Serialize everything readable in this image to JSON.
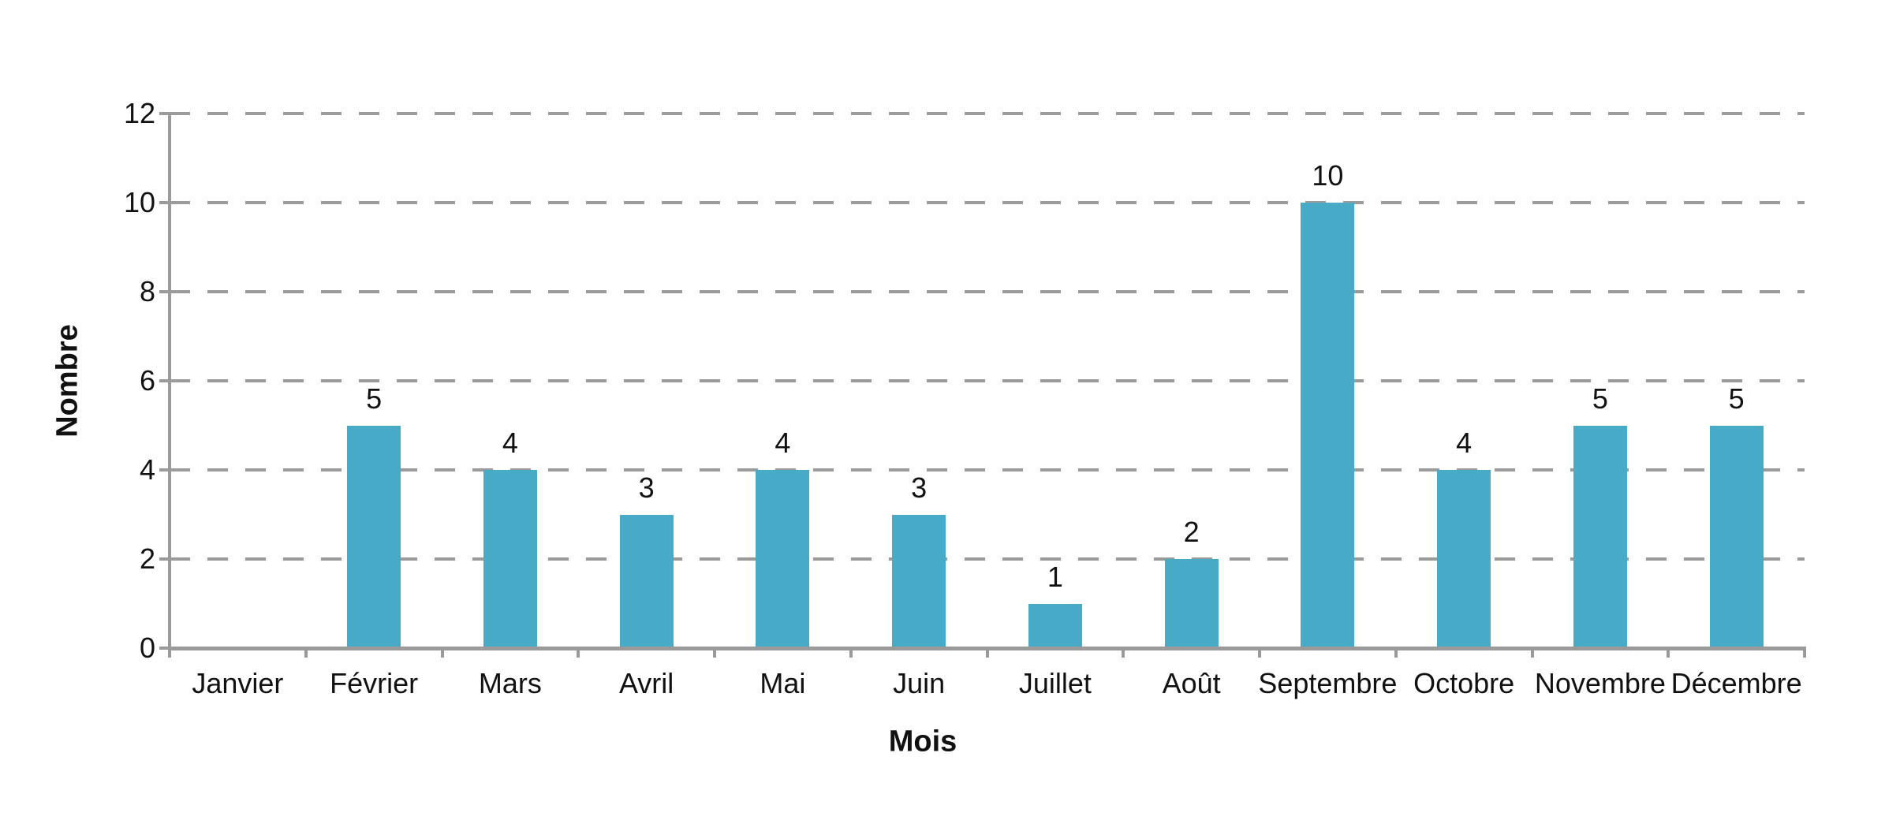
{
  "chart_data": {
    "type": "bar",
    "categories": [
      "Janvier",
      "Février",
      "Mars",
      "Avril",
      "Mai",
      "Juin",
      "Juillet",
      "Août",
      "Septembre",
      "Octobre",
      "Novembre",
      "Décembre"
    ],
    "values": [
      0,
      5,
      4,
      3,
      4,
      3,
      1,
      2,
      10,
      4,
      5,
      5
    ],
    "title": "",
    "xlabel": "Mois",
    "ylabel": "Nombre",
    "ylim": [
      0,
      12
    ],
    "yticks": [
      0,
      2,
      4,
      6,
      8,
      10,
      12
    ],
    "grid": "dashed-horizontal",
    "legend_position": "none",
    "data_labels": true,
    "data_labels_note": "values shown above bars; zero value has no bar and no label",
    "colors": {
      "bar": "#47AAC7",
      "gridline": "#9B9B9B",
      "axis": "#9A9A9A",
      "text": "#111111",
      "background": "#FFFFFF"
    }
  }
}
